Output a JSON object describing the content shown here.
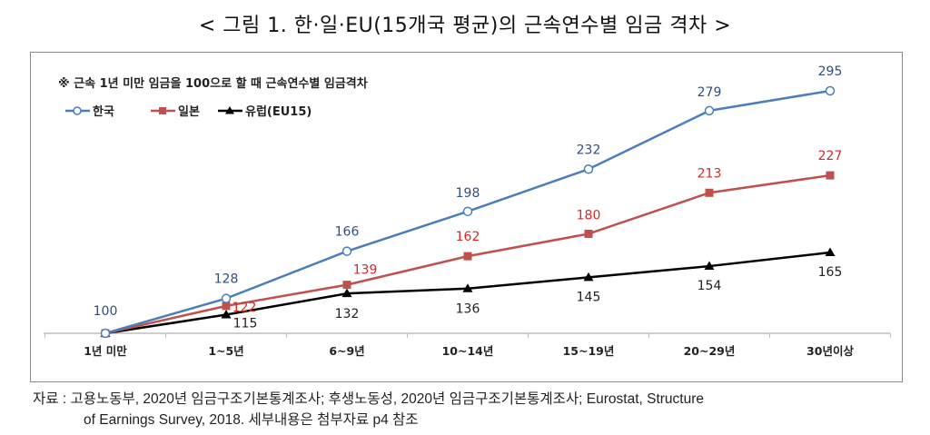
{
  "figure": {
    "title": "< 그림 1. 한·일·EU(15개국 평균)의 근속연수별 임금 격차 >",
    "source_line1": "자료 : 고용노동부, 2020년 임금구조기본통계조사; 후생노동성, 2020년 임금구조기본통계조사; Eurostat, Structure",
    "source_line2": "of Earnings Survey, 2018. 세부내용은 첨부자료 p4 참조"
  },
  "chart_data": {
    "type": "line",
    "title": "< 그림 1. 한·일·EU(15개국 평균)의 근속연수별 임금 격차 >",
    "annotation": "※ 근속 1년 미만 임금을 100으로 할 때 근속연수별 임금격차",
    "xlabel": "",
    "ylabel": "",
    "categories": [
      "1년 미만",
      "1~5년",
      "6~9년",
      "10~14년",
      "15~19년",
      "20~29년",
      "30년이상"
    ],
    "ylim": [
      100,
      295
    ],
    "grid": false,
    "legend_position": "top-left",
    "series": [
      {
        "name": "한국",
        "color": "#4a7ebb",
        "marker": "open-circle",
        "values": [
          100,
          128,
          166,
          198,
          232,
          279,
          295
        ],
        "labels": [
          "100",
          "128",
          "166",
          "198",
          "232",
          "279",
          "295"
        ],
        "label_color": "#2f4f7f"
      },
      {
        "name": "일본",
        "color": "#c0504d",
        "marker": "square",
        "values": [
          100,
          122,
          139,
          162,
          180,
          213,
          227
        ],
        "labels": [
          "",
          "122",
          "139",
          "162",
          "180",
          "213",
          "227"
        ],
        "label_color": "#d42a2a"
      },
      {
        "name": "유럽(EU15)",
        "color": "#000000",
        "marker": "triangle",
        "values": [
          100,
          115,
          132,
          136,
          145,
          154,
          165
        ],
        "labels": [
          "",
          "115",
          "132",
          "136",
          "145",
          "154",
          "165"
        ],
        "label_color": "#222222"
      }
    ]
  }
}
